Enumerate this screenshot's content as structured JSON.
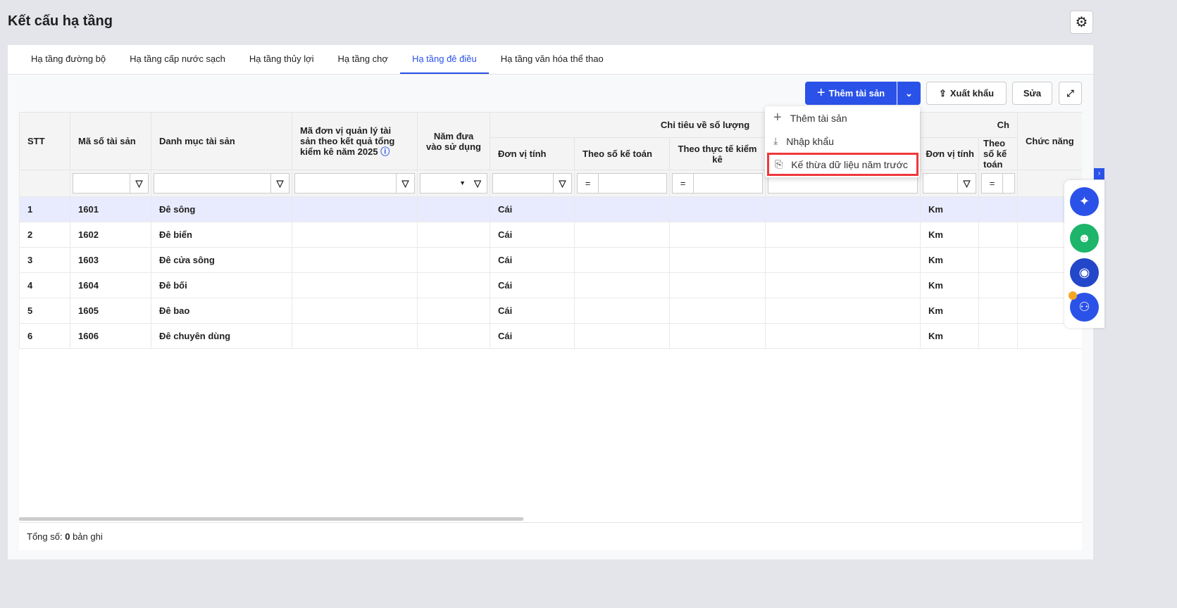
{
  "page": {
    "title": "Kết cấu hạ tầng"
  },
  "tabs": [
    {
      "label": "Hạ tầng đường bộ"
    },
    {
      "label": "Hạ tầng cấp nước sạch"
    },
    {
      "label": "Hạ tầng thủy lợi"
    },
    {
      "label": "Hạ tầng chợ"
    },
    {
      "label": "Hạ tầng đê điều",
      "active": true
    },
    {
      "label": "Hạ tầng văn hóa thể thao"
    }
  ],
  "toolbar": {
    "add": "Thêm tài sản",
    "export": "Xuất khẩu",
    "edit": "Sửa"
  },
  "menu": {
    "items": [
      {
        "label": "Thêm tài sản",
        "icon": "plus-icon"
      },
      {
        "label": "Nhập khẩu",
        "icon": "download-icon"
      },
      {
        "label": "Kế thừa dữ liệu năm trước",
        "icon": "inherit-icon",
        "highlighted": true
      }
    ]
  },
  "table": {
    "headers": {
      "stt": "STT",
      "code": "Mã số tài sản",
      "category": "Danh mục tài sản",
      "unit_code": "Mã đơn vị quản lý tài sản theo kết quả tổng kiểm kê năm 2025",
      "year": "Năm đưa vào sử dụng",
      "group1": "Chỉ tiêu về số lượng",
      "group2": "Ch",
      "unit": "Đơn vị tính",
      "by_accounting": "Theo số kế toán",
      "by_actual": "Theo thực tế kiểm kê",
      "unit2": "Đơn vị tính",
      "by_accounting2": "Theo số kế toán",
      "actions": "Chức năng"
    },
    "filter_eq": "=",
    "rows": [
      {
        "stt": "1",
        "code": "1601",
        "name": "Đê sông",
        "unit": "Cái",
        "unit2": "Km"
      },
      {
        "stt": "2",
        "code": "1602",
        "name": "Đê biển",
        "unit": "Cái",
        "unit2": "Km"
      },
      {
        "stt": "3",
        "code": "1603",
        "name": "Đê cửa sông",
        "unit": "Cái",
        "unit2": "Km"
      },
      {
        "stt": "4",
        "code": "1604",
        "name": "Đê bối",
        "unit": "Cái",
        "unit2": "Km"
      },
      {
        "stt": "5",
        "code": "1605",
        "name": "Đê bao",
        "unit": "Cái",
        "unit2": "Km"
      },
      {
        "stt": "6",
        "code": "1606",
        "name": "Đê chuyên dùng",
        "unit": "Cái",
        "unit2": "Km"
      }
    ]
  },
  "footer": {
    "label": "Tổng số:",
    "count": "0",
    "suffix": "bản ghi"
  },
  "colors": {
    "primary": "#2b52e8",
    "highlight": "#f0383c",
    "selected_row": "#e8ebfd"
  }
}
